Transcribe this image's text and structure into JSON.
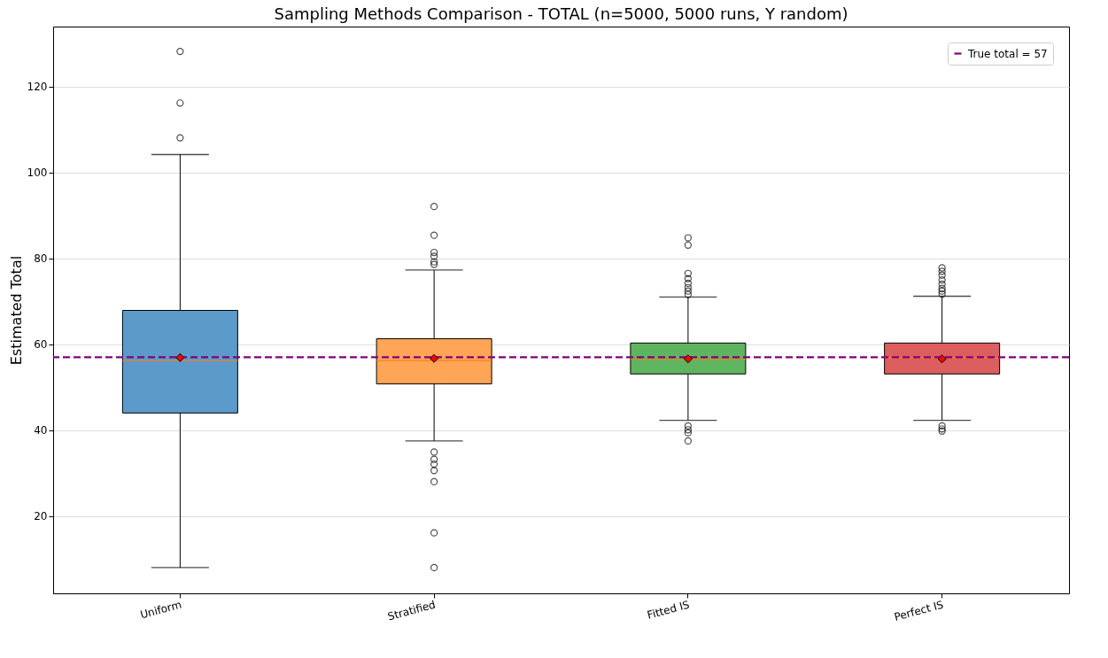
{
  "chart_data": {
    "type": "box",
    "title": "Sampling Methods Comparison - TOTAL (n=5000, 5000 runs, Y random)",
    "ylabel": "Estimated Total",
    "categories": [
      "Uniform",
      "Stratified",
      "Fitted IS",
      "Perfect IS"
    ],
    "colors": [
      "#5b9ac9",
      "#ffa556",
      "#5fb45f",
      "#dc5e5e"
    ],
    "boxes": [
      {
        "low": 8,
        "q1": 44,
        "median": 56.2,
        "q3": 67.9,
        "high": 104.2,
        "mean": 56.9,
        "outliers": [
          128.2,
          116.2,
          108.1
        ]
      },
      {
        "low": 37.5,
        "q1": 50.8,
        "median": 56.2,
        "q3": 61.3,
        "high": 77.3,
        "mean": 56.7,
        "outliers": [
          92.1,
          85.4,
          81.4,
          80.5,
          79.2,
          78.6,
          34.9,
          33.2,
          32.1,
          30.6,
          28,
          16.1,
          8
        ]
      },
      {
        "low": 42.3,
        "q1": 53.1,
        "median": 56.5,
        "q3": 60.3,
        "high": 71,
        "mean": 56.6,
        "outliers": [
          84.8,
          83.1,
          76.5,
          75.3,
          74.2,
          73.2,
          72.4,
          71.6,
          41,
          40.1,
          39.4,
          37.5
        ]
      },
      {
        "low": 42.3,
        "q1": 53.1,
        "median": 56.8,
        "q3": 60.3,
        "high": 71.2,
        "mean": 56.6,
        "outliers": [
          77.8,
          77,
          76.1,
          75,
          74,
          73,
          72.4,
          71.7,
          41,
          40.3,
          39.8
        ]
      }
    ],
    "ylim": [
      2,
      134
    ],
    "yticks": [
      20,
      40,
      60,
      80,
      100,
      120
    ],
    "grid": "y",
    "legend": "top right",
    "ref_lines": [
      {
        "axis": "y",
        "value": 57,
        "label": "True total = 57",
        "color": "#800080",
        "line_style": "dashed"
      }
    ]
  }
}
